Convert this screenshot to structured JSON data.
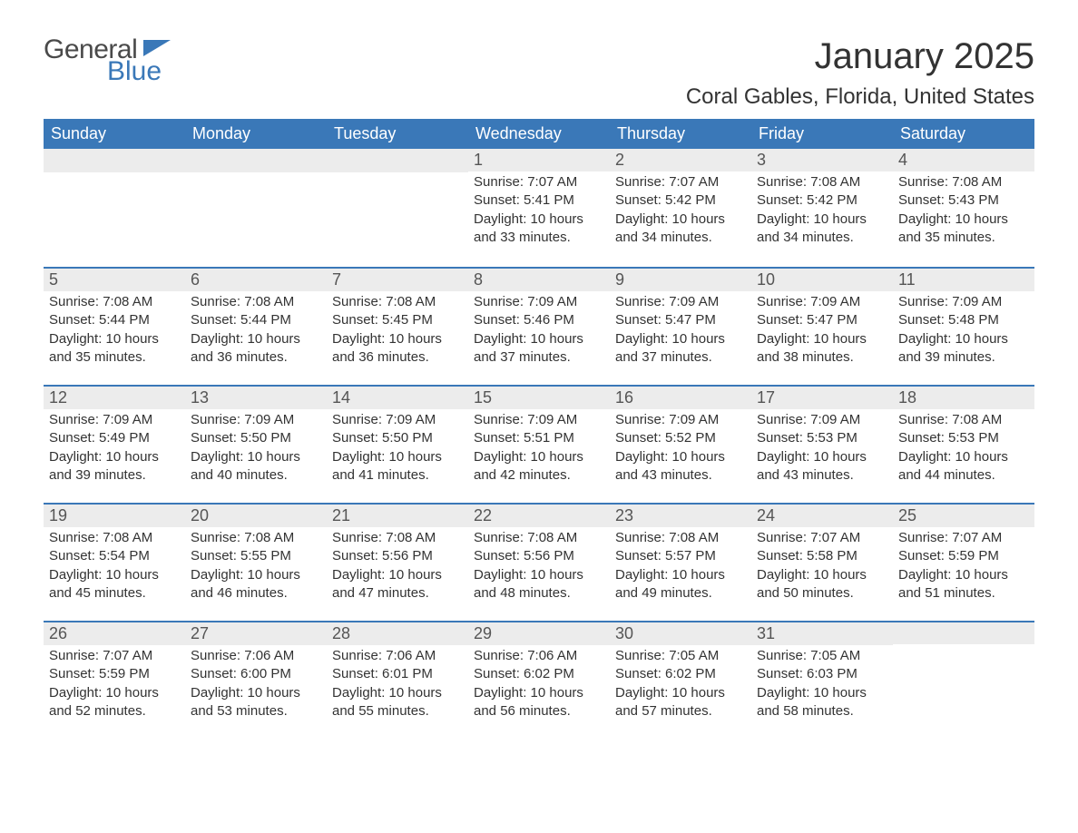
{
  "brand": {
    "word1": "General",
    "word2": "Blue"
  },
  "title": "January 2025",
  "location": "Coral Gables, Florida, United States",
  "colors": {
    "header_bg": "#3a78b8",
    "header_text": "#ffffff",
    "daybar_bg": "#ececec",
    "rule": "#3a78b8",
    "text": "#333333",
    "background": "#ffffff"
  },
  "day_headers": [
    "Sunday",
    "Monday",
    "Tuesday",
    "Wednesday",
    "Thursday",
    "Friday",
    "Saturday"
  ],
  "weeks": [
    [
      null,
      null,
      null,
      {
        "n": "1",
        "sunrise": "Sunrise: 7:07 AM",
        "sunset": "Sunset: 5:41 PM",
        "day1": "Daylight: 10 hours",
        "day2": "and 33 minutes."
      },
      {
        "n": "2",
        "sunrise": "Sunrise: 7:07 AM",
        "sunset": "Sunset: 5:42 PM",
        "day1": "Daylight: 10 hours",
        "day2": "and 34 minutes."
      },
      {
        "n": "3",
        "sunrise": "Sunrise: 7:08 AM",
        "sunset": "Sunset: 5:42 PM",
        "day1": "Daylight: 10 hours",
        "day2": "and 34 minutes."
      },
      {
        "n": "4",
        "sunrise": "Sunrise: 7:08 AM",
        "sunset": "Sunset: 5:43 PM",
        "day1": "Daylight: 10 hours",
        "day2": "and 35 minutes."
      }
    ],
    [
      {
        "n": "5",
        "sunrise": "Sunrise: 7:08 AM",
        "sunset": "Sunset: 5:44 PM",
        "day1": "Daylight: 10 hours",
        "day2": "and 35 minutes."
      },
      {
        "n": "6",
        "sunrise": "Sunrise: 7:08 AM",
        "sunset": "Sunset: 5:44 PM",
        "day1": "Daylight: 10 hours",
        "day2": "and 36 minutes."
      },
      {
        "n": "7",
        "sunrise": "Sunrise: 7:08 AM",
        "sunset": "Sunset: 5:45 PM",
        "day1": "Daylight: 10 hours",
        "day2": "and 36 minutes."
      },
      {
        "n": "8",
        "sunrise": "Sunrise: 7:09 AM",
        "sunset": "Sunset: 5:46 PM",
        "day1": "Daylight: 10 hours",
        "day2": "and 37 minutes."
      },
      {
        "n": "9",
        "sunrise": "Sunrise: 7:09 AM",
        "sunset": "Sunset: 5:47 PM",
        "day1": "Daylight: 10 hours",
        "day2": "and 37 minutes."
      },
      {
        "n": "10",
        "sunrise": "Sunrise: 7:09 AM",
        "sunset": "Sunset: 5:47 PM",
        "day1": "Daylight: 10 hours",
        "day2": "and 38 minutes."
      },
      {
        "n": "11",
        "sunrise": "Sunrise: 7:09 AM",
        "sunset": "Sunset: 5:48 PM",
        "day1": "Daylight: 10 hours",
        "day2": "and 39 minutes."
      }
    ],
    [
      {
        "n": "12",
        "sunrise": "Sunrise: 7:09 AM",
        "sunset": "Sunset: 5:49 PM",
        "day1": "Daylight: 10 hours",
        "day2": "and 39 minutes."
      },
      {
        "n": "13",
        "sunrise": "Sunrise: 7:09 AM",
        "sunset": "Sunset: 5:50 PM",
        "day1": "Daylight: 10 hours",
        "day2": "and 40 minutes."
      },
      {
        "n": "14",
        "sunrise": "Sunrise: 7:09 AM",
        "sunset": "Sunset: 5:50 PM",
        "day1": "Daylight: 10 hours",
        "day2": "and 41 minutes."
      },
      {
        "n": "15",
        "sunrise": "Sunrise: 7:09 AM",
        "sunset": "Sunset: 5:51 PM",
        "day1": "Daylight: 10 hours",
        "day2": "and 42 minutes."
      },
      {
        "n": "16",
        "sunrise": "Sunrise: 7:09 AM",
        "sunset": "Sunset: 5:52 PM",
        "day1": "Daylight: 10 hours",
        "day2": "and 43 minutes."
      },
      {
        "n": "17",
        "sunrise": "Sunrise: 7:09 AM",
        "sunset": "Sunset: 5:53 PM",
        "day1": "Daylight: 10 hours",
        "day2": "and 43 minutes."
      },
      {
        "n": "18",
        "sunrise": "Sunrise: 7:08 AM",
        "sunset": "Sunset: 5:53 PM",
        "day1": "Daylight: 10 hours",
        "day2": "and 44 minutes."
      }
    ],
    [
      {
        "n": "19",
        "sunrise": "Sunrise: 7:08 AM",
        "sunset": "Sunset: 5:54 PM",
        "day1": "Daylight: 10 hours",
        "day2": "and 45 minutes."
      },
      {
        "n": "20",
        "sunrise": "Sunrise: 7:08 AM",
        "sunset": "Sunset: 5:55 PM",
        "day1": "Daylight: 10 hours",
        "day2": "and 46 minutes."
      },
      {
        "n": "21",
        "sunrise": "Sunrise: 7:08 AM",
        "sunset": "Sunset: 5:56 PM",
        "day1": "Daylight: 10 hours",
        "day2": "and 47 minutes."
      },
      {
        "n": "22",
        "sunrise": "Sunrise: 7:08 AM",
        "sunset": "Sunset: 5:56 PM",
        "day1": "Daylight: 10 hours",
        "day2": "and 48 minutes."
      },
      {
        "n": "23",
        "sunrise": "Sunrise: 7:08 AM",
        "sunset": "Sunset: 5:57 PM",
        "day1": "Daylight: 10 hours",
        "day2": "and 49 minutes."
      },
      {
        "n": "24",
        "sunrise": "Sunrise: 7:07 AM",
        "sunset": "Sunset: 5:58 PM",
        "day1": "Daylight: 10 hours",
        "day2": "and 50 minutes."
      },
      {
        "n": "25",
        "sunrise": "Sunrise: 7:07 AM",
        "sunset": "Sunset: 5:59 PM",
        "day1": "Daylight: 10 hours",
        "day2": "and 51 minutes."
      }
    ],
    [
      {
        "n": "26",
        "sunrise": "Sunrise: 7:07 AM",
        "sunset": "Sunset: 5:59 PM",
        "day1": "Daylight: 10 hours",
        "day2": "and 52 minutes."
      },
      {
        "n": "27",
        "sunrise": "Sunrise: 7:06 AM",
        "sunset": "Sunset: 6:00 PM",
        "day1": "Daylight: 10 hours",
        "day2": "and 53 minutes."
      },
      {
        "n": "28",
        "sunrise": "Sunrise: 7:06 AM",
        "sunset": "Sunset: 6:01 PM",
        "day1": "Daylight: 10 hours",
        "day2": "and 55 minutes."
      },
      {
        "n": "29",
        "sunrise": "Sunrise: 7:06 AM",
        "sunset": "Sunset: 6:02 PM",
        "day1": "Daylight: 10 hours",
        "day2": "and 56 minutes."
      },
      {
        "n": "30",
        "sunrise": "Sunrise: 7:05 AM",
        "sunset": "Sunset: 6:02 PM",
        "day1": "Daylight: 10 hours",
        "day2": "and 57 minutes."
      },
      {
        "n": "31",
        "sunrise": "Sunrise: 7:05 AM",
        "sunset": "Sunset: 6:03 PM",
        "day1": "Daylight: 10 hours",
        "day2": "and 58 minutes."
      },
      null
    ]
  ]
}
